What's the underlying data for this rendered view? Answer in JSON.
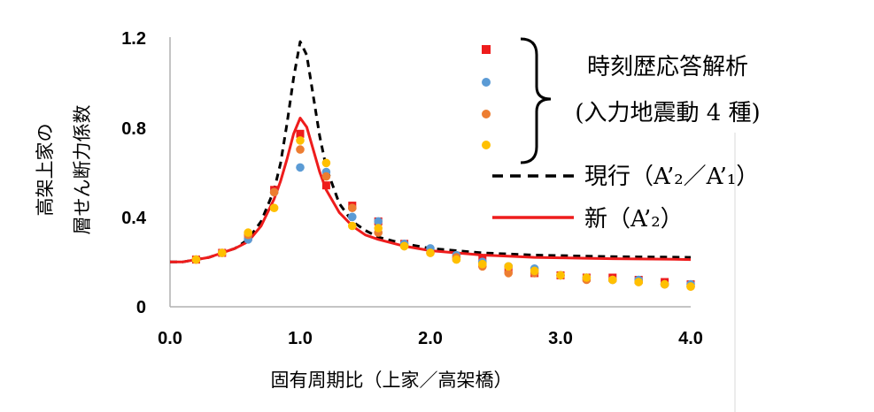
{
  "chart_data": {
    "type": "scatter",
    "xlabel": "固有周期比（上家／高架橋）",
    "ylabel_lines": [
      "高架上家の",
      "層せん断力係数"
    ],
    "xlim": [
      0,
      4.0
    ],
    "ylim": [
      0,
      1.2
    ],
    "xticks": [
      "0.0",
      "1.0",
      "2.0",
      "3.0",
      "4.0"
    ],
    "yticks": [
      "0",
      "0.4",
      "0.8",
      "1.2"
    ],
    "grid": false,
    "legend_group_label_lines": [
      "時刻歴応答解析",
      "(入力地震動 4 種)"
    ],
    "colors": {
      "red": "#ee1c1c",
      "blue": "#5b9bd5",
      "orange": "#ed7d31",
      "yellow": "#ffc000",
      "line_current": "#000000",
      "line_new": "#ee1c1c"
    },
    "scatter_series": [
      {
        "color": "#ee1c1c",
        "marker": "square",
        "x": [
          0.2,
          0.4,
          0.6,
          0.8,
          1.0,
          1.2,
          1.4,
          1.6,
          1.8,
          2.0,
          2.2,
          2.4,
          2.6,
          2.8,
          3.0,
          3.2,
          3.4,
          3.6,
          3.8,
          4.0
        ],
        "y": [
          0.21,
          0.24,
          0.31,
          0.52,
          0.77,
          0.54,
          0.45,
          0.38,
          0.28,
          0.25,
          0.22,
          0.21,
          0.17,
          0.15,
          0.14,
          0.13,
          0.13,
          0.12,
          0.11,
          0.1
        ]
      },
      {
        "color": "#5b9bd5",
        "marker": "circle",
        "x": [
          0.2,
          0.4,
          0.6,
          0.8,
          1.0,
          1.2,
          1.4,
          1.6,
          1.8,
          2.0,
          2.2,
          2.4,
          2.6,
          2.8,
          3.0,
          3.2,
          3.4,
          3.6,
          3.8,
          4.0
        ],
        "y": [
          0.21,
          0.24,
          0.3,
          0.51,
          0.62,
          0.6,
          0.4,
          0.38,
          0.28,
          0.26,
          0.23,
          0.2,
          0.18,
          0.17,
          0.14,
          0.13,
          0.12,
          0.12,
          0.1,
          0.1
        ]
      },
      {
        "color": "#ed7d31",
        "marker": "circle",
        "x": [
          0.2,
          0.4,
          0.6,
          0.8,
          1.0,
          1.2,
          1.4,
          1.6,
          1.8,
          2.0,
          2.2,
          2.4,
          2.6,
          2.8,
          3.0,
          3.2,
          3.4,
          3.6,
          3.8,
          4.0
        ],
        "y": [
          0.21,
          0.24,
          0.32,
          0.51,
          0.7,
          0.58,
          0.44,
          0.33,
          0.27,
          0.24,
          0.22,
          0.18,
          0.15,
          0.15,
          0.14,
          0.12,
          0.12,
          0.11,
          0.1,
          0.09
        ]
      },
      {
        "color": "#ffc000",
        "marker": "circle",
        "x": [
          0.2,
          0.4,
          0.6,
          0.8,
          1.0,
          1.2,
          1.4,
          1.6,
          1.8,
          2.0,
          2.2,
          2.4,
          2.6,
          2.8,
          3.0,
          3.2,
          3.4,
          3.6,
          3.8,
          4.0
        ],
        "y": [
          0.21,
          0.24,
          0.33,
          0.44,
          0.74,
          0.64,
          0.36,
          0.35,
          0.27,
          0.24,
          0.21,
          0.19,
          0.18,
          0.16,
          0.14,
          0.13,
          0.12,
          0.11,
          0.1,
          0.09
        ]
      }
    ],
    "line_series": [
      {
        "name": "現行（A’₂／A’₁）",
        "style": "dashed",
        "color": "#000000",
        "x": [
          0,
          0.1,
          0.2,
          0.3,
          0.4,
          0.5,
          0.6,
          0.7,
          0.8,
          0.85,
          0.9,
          0.95,
          1.0,
          1.05,
          1.1,
          1.15,
          1.2,
          1.3,
          1.4,
          1.5,
          1.6,
          1.8,
          2.0,
          2.2,
          2.4,
          2.6,
          2.8,
          3.0,
          3.2,
          3.4,
          3.6,
          3.8,
          4.0
        ],
        "y": [
          0.2,
          0.2,
          0.21,
          0.22,
          0.24,
          0.26,
          0.3,
          0.38,
          0.52,
          0.64,
          0.82,
          1.02,
          1.18,
          1.12,
          0.94,
          0.76,
          0.62,
          0.46,
          0.38,
          0.34,
          0.31,
          0.28,
          0.26,
          0.25,
          0.24,
          0.235,
          0.23,
          0.228,
          0.225,
          0.223,
          0.222,
          0.221,
          0.22
        ]
      },
      {
        "name": "新（A’₂）",
        "style": "solid",
        "color": "#ee1c1c",
        "x": [
          0,
          0.1,
          0.2,
          0.3,
          0.4,
          0.5,
          0.6,
          0.7,
          0.8,
          0.85,
          0.9,
          0.95,
          1.0,
          1.05,
          1.1,
          1.15,
          1.2,
          1.3,
          1.4,
          1.5,
          1.6,
          1.8,
          2.0,
          2.2,
          2.4,
          2.6,
          2.8,
          3.0,
          3.2,
          3.4,
          3.6,
          3.8,
          4.0
        ],
        "y": [
          0.2,
          0.2,
          0.21,
          0.22,
          0.24,
          0.26,
          0.29,
          0.36,
          0.48,
          0.56,
          0.66,
          0.77,
          0.84,
          0.8,
          0.7,
          0.6,
          0.52,
          0.42,
          0.36,
          0.32,
          0.3,
          0.27,
          0.25,
          0.24,
          0.23,
          0.225,
          0.22,
          0.218,
          0.216,
          0.214,
          0.213,
          0.212,
          0.21
        ]
      }
    ]
  }
}
